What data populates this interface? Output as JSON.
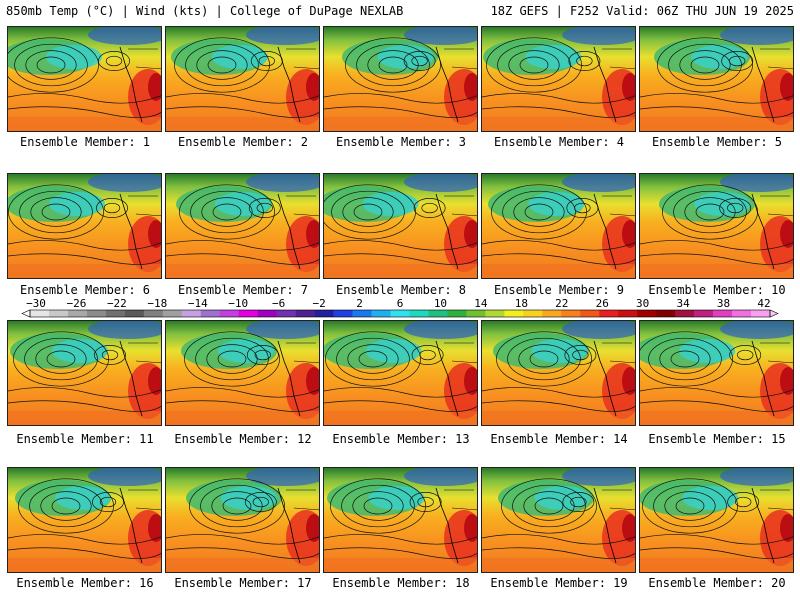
{
  "header": {
    "left": "850mb Temp (°C) | Wind (kts) | College of DuPage NEXLAB",
    "right": "18Z GEFS | F252 Valid: 06Z THU JUN 19 2025"
  },
  "members": [
    {
      "label": "Ensemble Member: 1"
    },
    {
      "label": "Ensemble Member: 2"
    },
    {
      "label": "Ensemble Member: 3"
    },
    {
      "label": "Ensemble Member: 4"
    },
    {
      "label": "Ensemble Member: 5"
    },
    {
      "label": "Ensemble Member: 6"
    },
    {
      "label": "Ensemble Member: 7"
    },
    {
      "label": "Ensemble Member: 8"
    },
    {
      "label": "Ensemble Member: 9"
    },
    {
      "label": "Ensemble Member: 10"
    },
    {
      "label": "Ensemble Member: 11"
    },
    {
      "label": "Ensemble Member: 12"
    },
    {
      "label": "Ensemble Member: 13"
    },
    {
      "label": "Ensemble Member: 14"
    },
    {
      "label": "Ensemble Member: 15"
    },
    {
      "label": "Ensemble Member: 16"
    },
    {
      "label": "Ensemble Member: 17"
    },
    {
      "label": "Ensemble Member: 18"
    },
    {
      "label": "Ensemble Member: 19"
    },
    {
      "label": "Ensemble Member: 20"
    }
  ],
  "colorbar": {
    "tick_labels": [
      "-30",
      "-26",
      "-22",
      "-18",
      "-14",
      "-10",
      "-6",
      "-2",
      "2",
      "6",
      "10",
      "14",
      "18",
      "22",
      "26",
      "30",
      "34",
      "38",
      "42"
    ],
    "colors": [
      "#e6e6e6",
      "#c8c8c8",
      "#a8a8a8",
      "#8c8c8c",
      "#707070",
      "#5a5a5a",
      "#808080",
      "#a0a0a0",
      "#c4a0e0",
      "#a070d0",
      "#c040e0",
      "#e000e0",
      "#a000c0",
      "#7030b0",
      "#502090",
      "#2020a0",
      "#2040e0",
      "#1878f0",
      "#20b0f0",
      "#30e0f0",
      "#20d8c0",
      "#20c080",
      "#30b040",
      "#70c030",
      "#b0d830",
      "#f0f020",
      "#f8d020",
      "#f8a820",
      "#f88020",
      "#f05818",
      "#e82020",
      "#c81010",
      "#a00000",
      "#800000",
      "#a01040",
      "#c02080",
      "#e040c0",
      "#f070e0",
      "#f8a0f0"
    ]
  }
}
